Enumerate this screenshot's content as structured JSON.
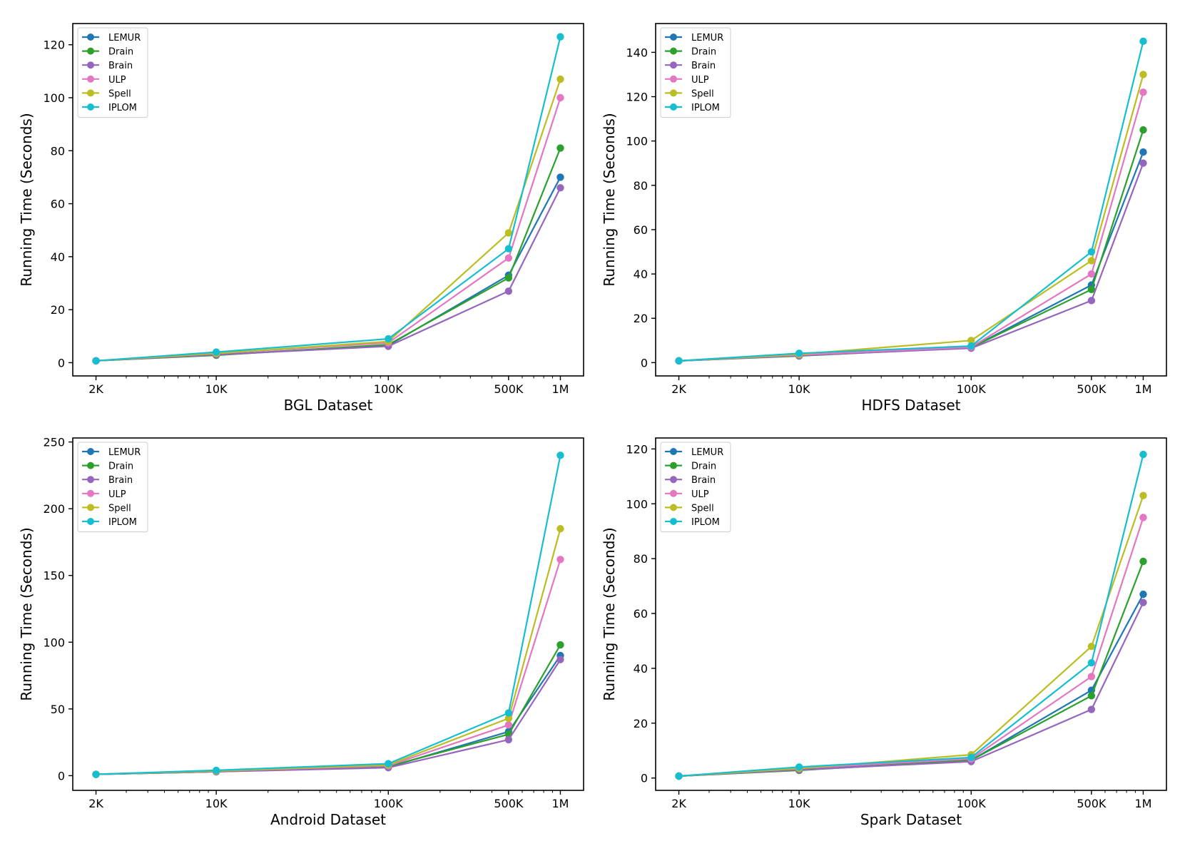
{
  "chart_data": [
    {
      "type": "line",
      "title": "",
      "xlabel": "BGL Dataset",
      "ylabel": "Running Time (Seconds)",
      "xscale": "log",
      "x": [
        2000,
        10000,
        100000,
        500000,
        1000000
      ],
      "x_tick_labels": [
        "2K",
        "10K",
        "100K",
        "500K",
        "1M"
      ],
      "ylim": [
        -5,
        128
      ],
      "yticks": [
        0,
        20,
        40,
        60,
        80,
        100,
        120
      ],
      "legend": "top-left",
      "series": [
        {
          "name": "LEMUR",
          "color": "#1f77b4",
          "values": [
            0.7,
            3.0,
            6.5,
            33,
            70
          ]
        },
        {
          "name": "Drain",
          "color": "#2ca02c",
          "values": [
            0.7,
            2.8,
            6.8,
            32,
            81
          ]
        },
        {
          "name": "Brain",
          "color": "#9467bd",
          "values": [
            0.7,
            3.0,
            6.2,
            27,
            66
          ]
        },
        {
          "name": "ULP",
          "color": "#e377c2",
          "values": [
            0.7,
            3.5,
            7.5,
            39.5,
            100
          ]
        },
        {
          "name": "Spell",
          "color": "#bcbd22",
          "values": [
            0.7,
            3.5,
            8.0,
            49,
            107
          ]
        },
        {
          "name": "IPLOM",
          "color": "#17becf",
          "values": [
            0.7,
            4.0,
            9.0,
            43,
            123
          ]
        }
      ]
    },
    {
      "type": "line",
      "title": "",
      "xlabel": "HDFS Dataset",
      "ylabel": "Running Time (Seconds)",
      "xscale": "log",
      "x": [
        2000,
        10000,
        100000,
        500000,
        1000000
      ],
      "x_tick_labels": [
        "2K",
        "10K",
        "100K",
        "500K",
        "1M"
      ],
      "ylim": [
        -6,
        153
      ],
      "yticks": [
        0,
        20,
        40,
        60,
        80,
        100,
        120,
        140
      ],
      "legend": "top-left",
      "series": [
        {
          "name": "LEMUR",
          "color": "#1f77b4",
          "values": [
            0.8,
            3.2,
            6.8,
            35,
            95
          ]
        },
        {
          "name": "Drain",
          "color": "#2ca02c",
          "values": [
            0.8,
            3.0,
            6.8,
            33,
            105
          ]
        },
        {
          "name": "Brain",
          "color": "#9467bd",
          "values": [
            0.8,
            3.2,
            6.5,
            28,
            90
          ]
        },
        {
          "name": "ULP",
          "color": "#e377c2",
          "values": [
            0.8,
            3.5,
            7.0,
            40,
            122
          ]
        },
        {
          "name": "Spell",
          "color": "#bcbd22",
          "values": [
            0.8,
            3.8,
            10.0,
            46,
            130
          ]
        },
        {
          "name": "IPLOM",
          "color": "#17becf",
          "values": [
            0.8,
            4.2,
            7.5,
            50,
            145
          ]
        }
      ]
    },
    {
      "type": "line",
      "title": "",
      "xlabel": "Android Dataset",
      "ylabel": "Running Time (Seconds)",
      "xscale": "log",
      "x": [
        2000,
        10000,
        100000,
        500000,
        1000000
      ],
      "x_tick_labels": [
        "2K",
        "10K",
        "100K",
        "500K",
        "1M"
      ],
      "ylim": [
        -11,
        253
      ],
      "yticks": [
        0,
        50,
        100,
        150,
        200,
        250
      ],
      "legend": "top-left",
      "series": [
        {
          "name": "LEMUR",
          "color": "#1f77b4",
          "values": [
            1.0,
            3.0,
            6.5,
            33,
            90
          ]
        },
        {
          "name": "Drain",
          "color": "#2ca02c",
          "values": [
            1.0,
            3.0,
            7.0,
            31,
            98
          ]
        },
        {
          "name": "Brain",
          "color": "#9467bd",
          "values": [
            1.0,
            3.0,
            6.0,
            27,
            87
          ]
        },
        {
          "name": "ULP",
          "color": "#e377c2",
          "values": [
            1.0,
            3.5,
            7.5,
            38,
            162
          ]
        },
        {
          "name": "Spell",
          "color": "#bcbd22",
          "values": [
            1.0,
            3.5,
            8.0,
            43,
            185
          ]
        },
        {
          "name": "IPLOM",
          "color": "#17becf",
          "values": [
            1.0,
            4.0,
            9.0,
            47,
            240
          ]
        }
      ]
    },
    {
      "type": "line",
      "title": "",
      "xlabel": "Spark Dataset",
      "ylabel": "Running Time (Seconds)",
      "xscale": "log",
      "x": [
        2000,
        10000,
        100000,
        500000,
        1000000
      ],
      "x_tick_labels": [
        "2K",
        "10K",
        "100K",
        "500K",
        "1M"
      ],
      "ylim": [
        -4.5,
        124
      ],
      "yticks": [
        0,
        20,
        40,
        60,
        80,
        100,
        120
      ],
      "legend": "top-left",
      "series": [
        {
          "name": "LEMUR",
          "color": "#1f77b4",
          "values": [
            0.7,
            3.0,
            6.5,
            32,
            67
          ]
        },
        {
          "name": "Drain",
          "color": "#2ca02c",
          "values": [
            0.7,
            2.8,
            6.5,
            30,
            79
          ]
        },
        {
          "name": "Brain",
          "color": "#9467bd",
          "values": [
            0.7,
            3.0,
            6.0,
            25,
            64
          ]
        },
        {
          "name": "ULP",
          "color": "#e377c2",
          "values": [
            0.7,
            3.5,
            7.0,
            37,
            95
          ]
        },
        {
          "name": "Spell",
          "color": "#bcbd22",
          "values": [
            0.7,
            3.5,
            8.5,
            48,
            103
          ]
        },
        {
          "name": "IPLOM",
          "color": "#17becf",
          "values": [
            0.7,
            4.0,
            7.5,
            42,
            118
          ]
        }
      ]
    }
  ]
}
